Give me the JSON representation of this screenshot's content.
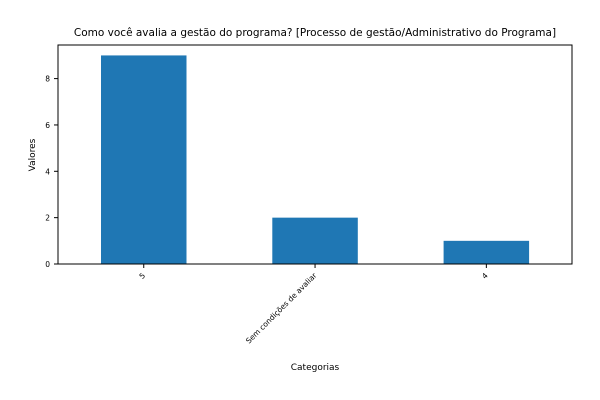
{
  "chart_data": {
    "type": "bar",
    "title": "Como você avalia a gestão do programa? [Processo de gestão/Administrativo do Programa]",
    "xlabel": "Categorias",
    "ylabel": "Valores",
    "categories": [
      "5",
      "Sem condições de avaliar",
      "4"
    ],
    "values": [
      9,
      2,
      1
    ],
    "ylim": [
      0,
      9.45
    ],
    "yticks": [
      0,
      2,
      4,
      6,
      8
    ],
    "grid": false,
    "legend": "none",
    "bar_color": "#1f77b4"
  }
}
